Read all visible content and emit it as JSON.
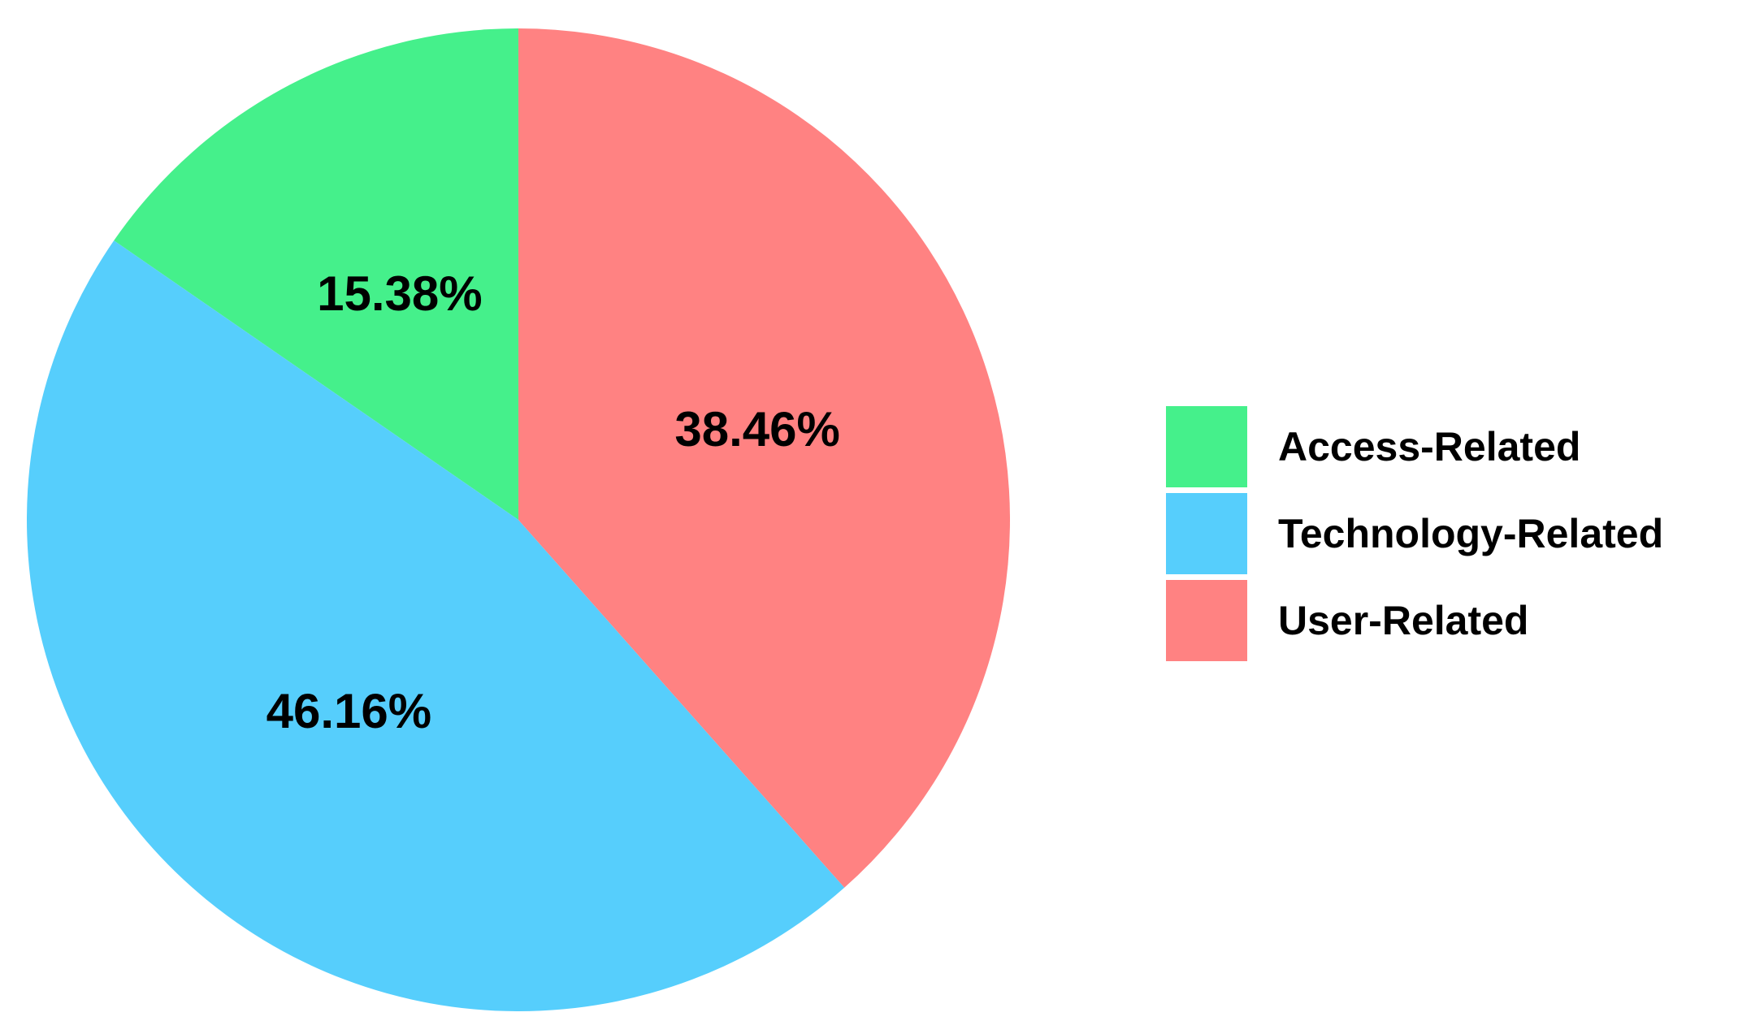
{
  "chart_data": {
    "type": "pie",
    "title": "",
    "categories": [
      "Access-Related",
      "Technology-Related",
      "User-Related"
    ],
    "values": [
      15.38,
      46.16,
      38.46
    ],
    "labels": [
      "15.38%",
      "46.16%",
      "38.46%"
    ],
    "colors": [
      "#45f08b",
      "#56cefc",
      "#ff8282"
    ],
    "start": "12 o'clock",
    "direction": "counterclockwise",
    "legend": {
      "position": "right",
      "entries": [
        "Access-Related",
        "Technology-Related",
        "User-Related"
      ]
    }
  }
}
